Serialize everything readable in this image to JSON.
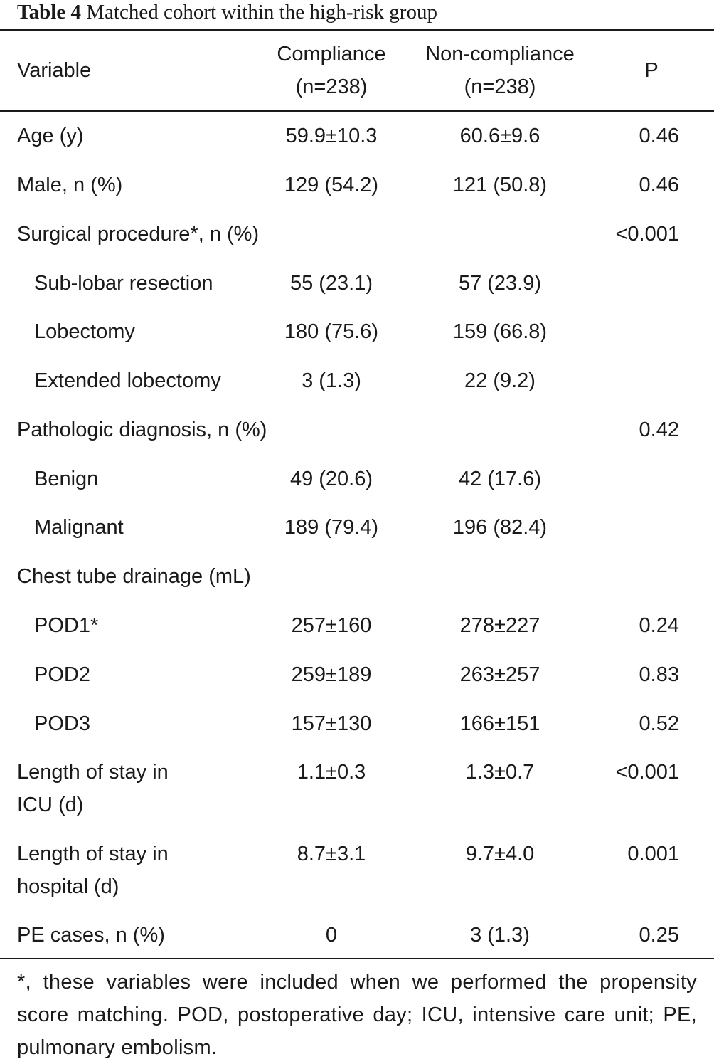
{
  "caption": {
    "label": "Table 4",
    "title": "Matched cohort within the high-risk group"
  },
  "header": {
    "variable": "Variable",
    "compliance": [
      "Compliance",
      "(n=238)"
    ],
    "non_compliance": [
      "Non-compliance",
      "(n=238)"
    ],
    "p": "P"
  },
  "rows": [
    {
      "variable": [
        "Age (y)"
      ],
      "compliance": "59.9±10.3",
      "non_compliance": "60.6±9.6",
      "p": "0.46"
    },
    {
      "variable": [
        "Male, n (%)"
      ],
      "compliance": "129 (54.2)",
      "non_compliance": "121 (50.8)",
      "p": "0.46"
    },
    {
      "variable": [
        "Surgical procedure*, n (%)"
      ],
      "compliance": "",
      "non_compliance": "",
      "p": "<0.001"
    },
    {
      "variable": [
        "Sub-lobar resection"
      ],
      "compliance": "55 (23.1)",
      "non_compliance": "57 (23.9)",
      "p": ""
    },
    {
      "variable": [
        "Lobectomy"
      ],
      "compliance": "180 (75.6)",
      "non_compliance": "159 (66.8)",
      "p": ""
    },
    {
      "variable": [
        "Extended lobectomy"
      ],
      "compliance": "3 (1.3)",
      "non_compliance": "22 (9.2)",
      "p": ""
    },
    {
      "variable": [
        "Pathologic diagnosis, n (%)"
      ],
      "compliance": "",
      "non_compliance": "",
      "p": "0.42"
    },
    {
      "variable": [
        "Benign"
      ],
      "compliance": "49 (20.6)",
      "non_compliance": "42 (17.6)",
      "p": ""
    },
    {
      "variable": [
        "Malignant"
      ],
      "compliance": "189 (79.4)",
      "non_compliance": "196 (82.4)",
      "p": ""
    },
    {
      "variable": [
        "Chest tube drainage (mL)"
      ],
      "compliance": "",
      "non_compliance": "",
      "p": ""
    },
    {
      "variable": [
        "POD1*"
      ],
      "compliance": "257±160",
      "non_compliance": "278±227",
      "p": "0.24"
    },
    {
      "variable": [
        "POD2"
      ],
      "compliance": "259±189",
      "non_compliance": "263±257",
      "p": "0.83"
    },
    {
      "variable": [
        "POD3"
      ],
      "compliance": "157±130",
      "non_compliance": "166±151",
      "p": "0.52"
    },
    {
      "variable": [
        "Length of stay in",
        "ICU (d)"
      ],
      "compliance": "1.1±0.3",
      "non_compliance": "1.3±0.7",
      "p": "<0.001"
    },
    {
      "variable": [
        "Length of stay in",
        "hospital (d)"
      ],
      "compliance": "8.7±3.1",
      "non_compliance": "9.7±4.0",
      "p": "0.001"
    },
    {
      "variable": [
        "PE cases, n (%)"
      ],
      "compliance": "0",
      "non_compliance": "3 (1.3)",
      "p": "0.25"
    }
  ],
  "footnote": "*, these variables were included when we performed the propensity score matching. POD, postoperative day; ICU, intensive care unit; PE, pulmonary embolism."
}
